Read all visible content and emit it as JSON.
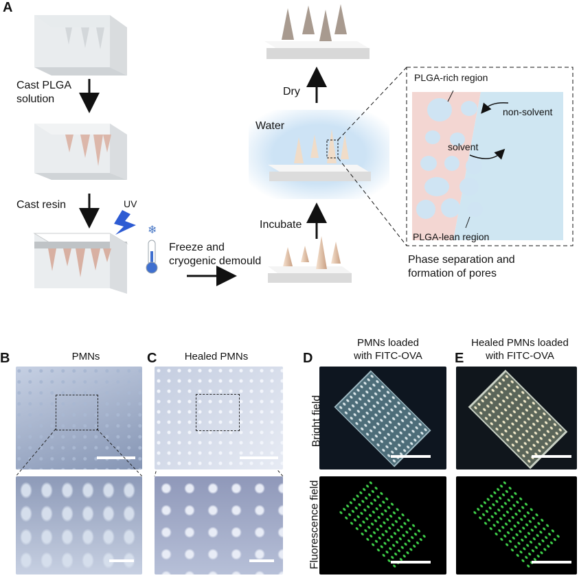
{
  "panel_a": {
    "letter": "A",
    "steps": {
      "cast_plga": [
        "Cast PLGA",
        "solution"
      ],
      "cast_resin": "Cast resin",
      "uv": "UV",
      "freeze": [
        "Freeze and",
        "cryogenic demould"
      ],
      "incubate": "Incubate",
      "water": "Water",
      "dry": "Dry"
    },
    "inset": {
      "rich": "PLGA-rich region",
      "lean": "PLGA-lean region",
      "non_solvent": "non-solvent",
      "solvent": "solvent"
    },
    "caption": [
      "Phase separation and",
      "formation of pores"
    ]
  },
  "panel_b": {
    "letter": "B",
    "title": "PMNs"
  },
  "panel_c": {
    "letter": "C",
    "title": "Healed  PMNs"
  },
  "panel_d": {
    "letter": "D",
    "title": [
      "PMNs loaded",
      "with FITC-OVA"
    ]
  },
  "panel_e": {
    "letter": "E",
    "title": [
      "Healed  PMNs loaded",
      "with FITC-OVA"
    ]
  },
  "row_labels": {
    "bright": "Bright field",
    "fluorescence": "Fluorescence  field"
  },
  "colors": {
    "fluorescence": "#3fd24a",
    "plga_rich": "#f3d6d2",
    "non_solvent": "#cfe6f2",
    "pore": "#cfe4f3"
  }
}
